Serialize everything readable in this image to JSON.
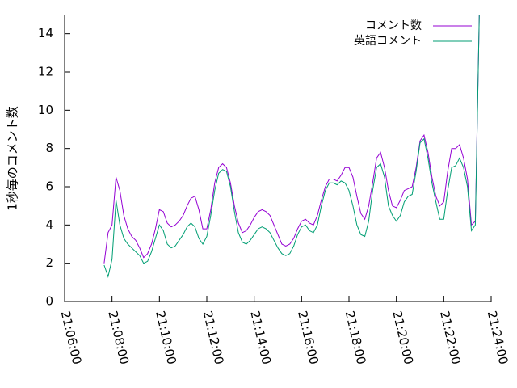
{
  "chart_data": {
    "type": "line",
    "ylabel": "1秒毎のコメント数",
    "xlim": [
      "21:06:00",
      "21:24:00"
    ],
    "xticks": [
      "21:06:00",
      "21:08:00",
      "21:10:00",
      "21:12:00",
      "21:14:00",
      "21:16:00",
      "21:18:00",
      "21:20:00",
      "21:22:00",
      "21:24:00"
    ],
    "ylim": [
      0,
      15
    ],
    "yticks": [
      0,
      2,
      4,
      6,
      8,
      10,
      12,
      14
    ],
    "legend": "upper-right",
    "x": [
      "21:07:40",
      "21:07:50",
      "21:08:00",
      "21:08:10",
      "21:08:20",
      "21:08:30",
      "21:08:40",
      "21:08:50",
      "21:09:00",
      "21:09:10",
      "21:09:20",
      "21:09:30",
      "21:09:40",
      "21:09:50",
      "21:10:00",
      "21:10:10",
      "21:10:20",
      "21:10:30",
      "21:10:40",
      "21:10:50",
      "21:11:00",
      "21:11:10",
      "21:11:20",
      "21:11:30",
      "21:11:40",
      "21:11:50",
      "21:12:00",
      "21:12:10",
      "21:12:20",
      "21:12:30",
      "21:12:40",
      "21:12:50",
      "21:13:00",
      "21:13:10",
      "21:13:20",
      "21:13:30",
      "21:13:40",
      "21:13:50",
      "21:14:00",
      "21:14:10",
      "21:14:20",
      "21:14:30",
      "21:14:40",
      "21:14:50",
      "21:15:00",
      "21:15:10",
      "21:15:20",
      "21:15:30",
      "21:15:40",
      "21:15:50",
      "21:16:00",
      "21:16:10",
      "21:16:20",
      "21:16:30",
      "21:16:40",
      "21:16:50",
      "21:17:00",
      "21:17:10",
      "21:17:20",
      "21:17:30",
      "21:17:40",
      "21:17:50",
      "21:18:00",
      "21:18:10",
      "21:18:20",
      "21:18:30",
      "21:18:40",
      "21:18:50",
      "21:19:00",
      "21:19:10",
      "21:19:20",
      "21:19:30",
      "21:19:40",
      "21:19:50",
      "21:20:00",
      "21:20:10",
      "21:20:20",
      "21:20:30",
      "21:20:40",
      "21:20:50",
      "21:21:00",
      "21:21:10",
      "21:21:20",
      "21:21:30",
      "21:21:40",
      "21:21:50",
      "21:22:00",
      "21:22:10",
      "21:22:20",
      "21:22:30",
      "21:22:40",
      "21:22:50",
      "21:23:00",
      "21:23:10",
      "21:23:20",
      "21:23:30"
    ],
    "series": [
      {
        "name": "コメント数",
        "color": "#9400d3",
        "values": [
          2.0,
          3.6,
          4.0,
          6.5,
          5.8,
          4.5,
          3.8,
          3.4,
          3.2,
          2.8,
          2.3,
          2.5,
          3.0,
          3.8,
          4.8,
          4.7,
          4.1,
          3.9,
          4.0,
          4.2,
          4.5,
          5.0,
          5.4,
          5.5,
          4.8,
          3.8,
          3.8,
          4.8,
          6.2,
          7.0,
          7.2,
          7.0,
          6.2,
          5.0,
          4.1,
          3.6,
          3.7,
          4.0,
          4.4,
          4.7,
          4.8,
          4.7,
          4.5,
          4.0,
          3.5,
          3.0,
          2.9,
          3.0,
          3.3,
          3.8,
          4.2,
          4.3,
          4.1,
          4.0,
          4.5,
          5.3,
          6.0,
          6.4,
          6.4,
          6.3,
          6.6,
          7.0,
          7.0,
          6.5,
          5.5,
          4.6,
          4.3,
          5.0,
          6.2,
          7.5,
          7.8,
          7.0,
          5.8,
          5.0,
          4.9,
          5.3,
          5.8,
          5.9,
          6.0,
          7.0,
          8.4,
          8.7,
          7.8,
          6.5,
          5.5,
          5.0,
          5.2,
          6.8,
          8.0,
          8.0,
          8.2,
          7.5,
          6.4,
          4.0,
          4.2,
          15
        ]
      },
      {
        "name": "英語コメント",
        "color": "#009e73",
        "values": [
          1.9,
          1.3,
          2.2,
          5.3,
          4.0,
          3.3,
          3.0,
          2.8,
          2.6,
          2.4,
          2.0,
          2.1,
          2.6,
          3.3,
          4.0,
          3.7,
          3.0,
          2.8,
          2.9,
          3.2,
          3.5,
          3.9,
          4.1,
          3.9,
          3.3,
          3.0,
          3.4,
          4.5,
          5.8,
          6.7,
          6.9,
          6.8,
          6.0,
          4.7,
          3.6,
          3.1,
          3.0,
          3.2,
          3.5,
          3.8,
          3.9,
          3.8,
          3.6,
          3.2,
          2.8,
          2.5,
          2.4,
          2.5,
          2.9,
          3.5,
          3.9,
          4.0,
          3.7,
          3.6,
          4.0,
          5.0,
          5.8,
          6.2,
          6.2,
          6.1,
          6.3,
          6.2,
          5.8,
          5.0,
          4.0,
          3.5,
          3.4,
          4.2,
          5.8,
          7.0,
          7.2,
          6.5,
          5.0,
          4.5,
          4.2,
          4.5,
          5.2,
          5.5,
          5.6,
          6.8,
          8.3,
          8.5,
          7.5,
          6.2,
          5.2,
          4.3,
          4.3,
          5.8,
          7.0,
          7.1,
          7.5,
          7.0,
          6.0,
          3.7,
          4.0,
          15
        ]
      }
    ]
  }
}
